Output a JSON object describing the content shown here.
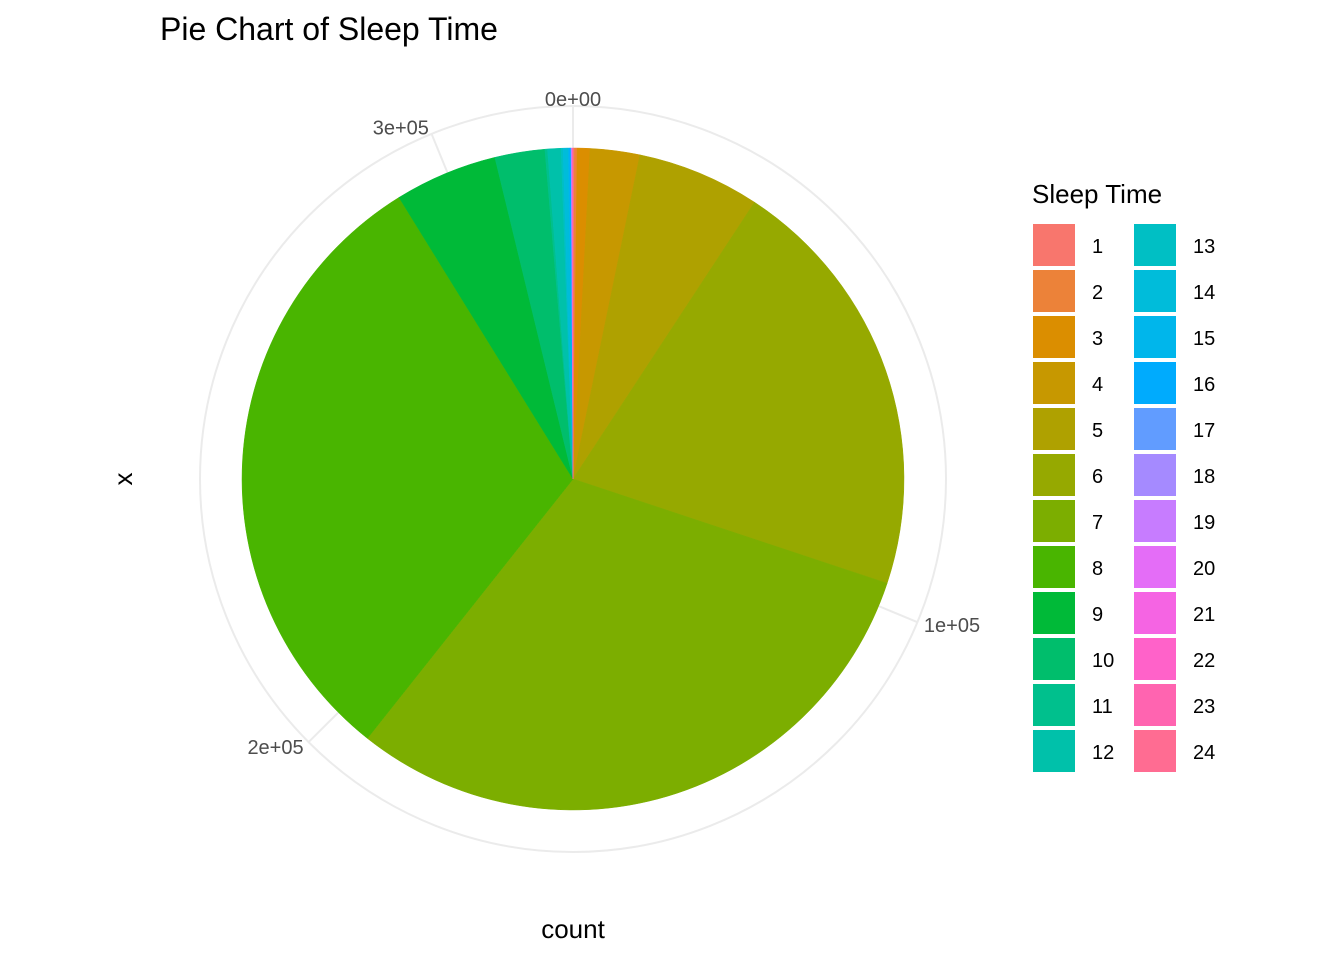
{
  "chart_data": {
    "type": "pie",
    "title": "Pie Chart of Sleep Time",
    "xlabel": "count",
    "ylabel": "x",
    "total": 319795,
    "ticks": [
      {
        "value": 0,
        "label": "0e+00"
      },
      {
        "value": 100000,
        "label": "1e+05"
      },
      {
        "value": 200000,
        "label": "2e+05"
      },
      {
        "value": 300000,
        "label": "3e+05"
      }
    ],
    "legend": {
      "title": "Sleep Time",
      "placement": "right",
      "columns": 2
    },
    "grid": true,
    "categories": [
      "1",
      "2",
      "3",
      "4",
      "5",
      "6",
      "7",
      "8",
      "9",
      "10",
      "11",
      "12",
      "13",
      "14",
      "15",
      "16",
      "17",
      "18",
      "19",
      "20",
      "21",
      "22",
      "23",
      "24"
    ],
    "values": [
      0,
      0,
      0,
      0,
      0,
      0,
      0,
      0,
      0,
      0,
      0,
      0,
      0,
      0,
      0,
      0,
      0,
      0,
      0,
      0,
      0,
      0,
      0,
      0
    ],
    "slice_values": {
      "1": 240,
      "2": 400,
      "3": 1990,
      "4": 7740,
      "5": 19180,
      "6": 66720,
      "7": 97750,
      "8": 97600,
      "9": 16040,
      "10": 7800,
      "11": 400,
      "12": 2100,
      "13": 300,
      "14": 800,
      "15": 190,
      "16": 240,
      "17": 20,
      "18": 80,
      "19": 10,
      "20": 120,
      "21": 10,
      "22": 10,
      "23": 10,
      "24": 45
    },
    "colors": {
      "1": "#F8766D",
      "2": "#EC8239",
      "3": "#DB8E00",
      "4": "#C79800",
      "5": "#AFA100",
      "6": "#96A900",
      "7": "#7CAE00",
      "8": "#49B500",
      "9": "#00BA38",
      "10": "#00BE6C",
      "11": "#00C08D",
      "12": "#00C1AA",
      "13": "#00BFC4",
      "14": "#00BCDA",
      "15": "#00B6EB",
      "16": "#00ABFD",
      "17": "#619CFF",
      "18": "#A58AFF",
      "19": "#C77CFF",
      "20": "#E46DF7",
      "21": "#F564E3",
      "22": "#FF62C9",
      "23": "#FF64B0",
      "24": "#FF6C92"
    }
  }
}
